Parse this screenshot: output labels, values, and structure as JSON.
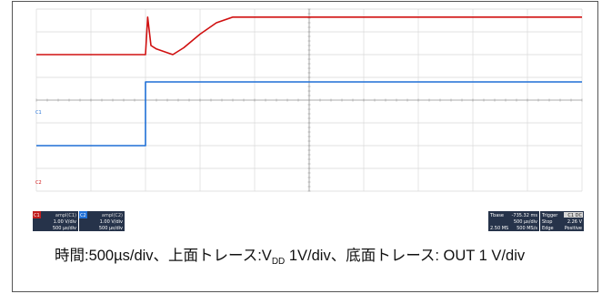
{
  "chart_data": {
    "type": "line",
    "xlim": [
      0,
      5000
    ],
    "x_unit": "µs",
    "grid": true,
    "series": [
      {
        "name": "VDD",
        "color": "#1f6fd6",
        "ylim": [
          -2,
          6
        ],
        "x": [
          0,
          1000,
          1000,
          5000
        ],
        "y": [
          0,
          0,
          2.8,
          2.8
        ]
      },
      {
        "name": "OUT",
        "color": "#d01010",
        "ylim": [
          -6,
          2
        ],
        "x": [
          0,
          1000,
          1020,
          1050,
          1100,
          1250,
          1350,
          1500,
          1650,
          1800,
          5000
        ],
        "y": [
          0,
          0,
          1.65,
          0.4,
          0.25,
          0.0,
          0.3,
          0.9,
          1.4,
          1.65,
          1.65
        ]
      }
    ]
  },
  "scope": {
    "markers": {
      "ch1": "C1",
      "ch2": "C2"
    },
    "ch1_panel": {
      "channel": "C1",
      "mode": "ampl(C1)",
      "vdiv": "1.00 V/div",
      "tdiv": "500 µs/div"
    },
    "ch2_panel": {
      "channel": "C2",
      "mode": "ampl(C2)",
      "vdiv": "1.00 V/div",
      "tdiv": "500 µs/div"
    },
    "timebase_panel": {
      "label": "Tbase",
      "offset": "-735.32 ms",
      "tdiv": "500 µs/div",
      "samples": "2.50 MS",
      "rate": "500 MS/s"
    },
    "trigger_panel": {
      "label": "Trigger",
      "source": "C1 DC",
      "mode": "Stop",
      "level": "2.26 V",
      "type": "Edge",
      "slope": "Positive"
    }
  },
  "caption": {
    "part1": "時間:500µs/div、上面トレース:V",
    "sub": "DD",
    "part2": " 1V/div、底面トレース: OUT 1 V/div"
  }
}
